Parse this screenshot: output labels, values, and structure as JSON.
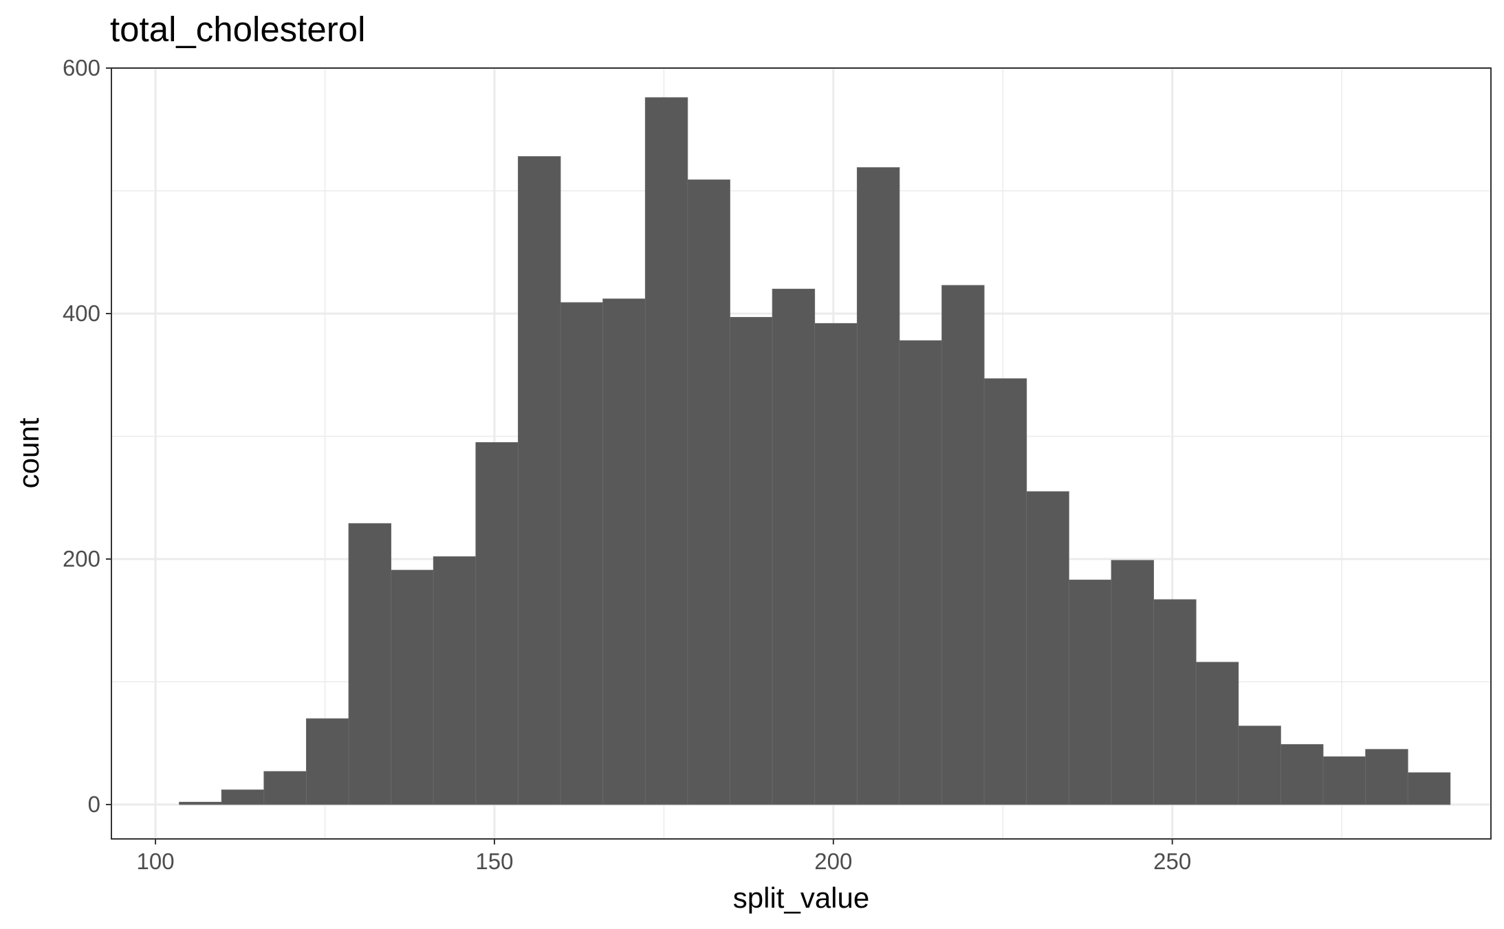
{
  "chart_data": {
    "type": "bar",
    "title": "total_cholesterol",
    "xlabel": "split_value",
    "ylabel": "count",
    "xlim": [
      93.5,
      297
    ],
    "ylim": [
      -28,
      600
    ],
    "x_ticks": [
      100,
      150,
      200,
      250
    ],
    "y_ticks": [
      0,
      200,
      400,
      600
    ],
    "grid": true,
    "bar_color": "#595959",
    "bin_width": 6.25,
    "bin_start": 103.5,
    "values": [
      2,
      12,
      27,
      70,
      229,
      191,
      202,
      295,
      528,
      409,
      412,
      576,
      509,
      397,
      420,
      392,
      519,
      378,
      423,
      347,
      255,
      183,
      199,
      167,
      116,
      64,
      49,
      39,
      45,
      26
    ]
  }
}
